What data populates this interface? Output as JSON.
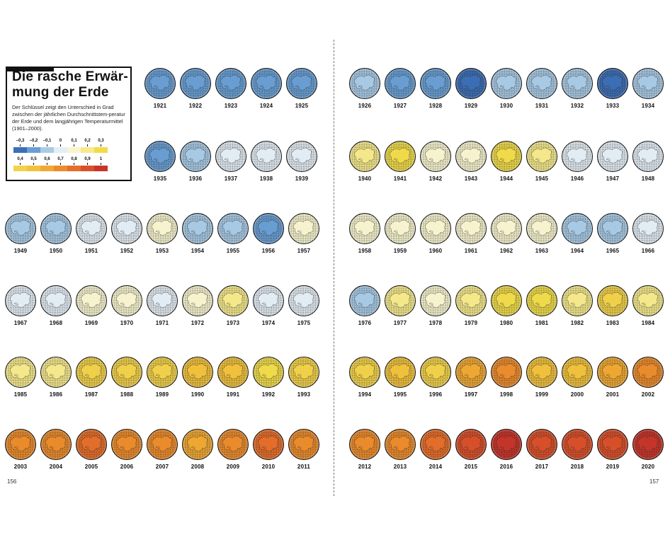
{
  "legend": {
    "title": "Die rasche Erwär-mung der Erde",
    "title_line1": "Die rasche Erwär-",
    "title_line2": "mung der Erde",
    "description": "Der Schlüssel zeigt den Unterschied in Grad zwischen der jährlichen Durchschnittstem-peratur der Erde und dem langjährigen Temperaturmittel (1901–2000).",
    "scale_row1": [
      {
        "label": "–0,3",
        "color": "#3d6fb6"
      },
      {
        "label": "–0,2",
        "color": "#6a9fd4"
      },
      {
        "label": "–0,1",
        "color": "#a9cbe6"
      },
      {
        "label": "0",
        "color": "#e4eef5"
      },
      {
        "label": "0,1",
        "color": "#f8f5d0"
      },
      {
        "label": "0,2",
        "color": "#f6ea8c"
      },
      {
        "label": "0,3",
        "color": "#f1dc4a"
      }
    ],
    "scale_row2": [
      {
        "label": "0,4",
        "color": "#f2d24a"
      },
      {
        "label": "0,5",
        "color": "#f2c23c"
      },
      {
        "label": "0,6",
        "color": "#f0a932"
      },
      {
        "label": "0,7",
        "color": "#ec8c2c"
      },
      {
        "label": "0,8",
        "color": "#e56e2a"
      },
      {
        "label": "0,9",
        "color": "#d9502a"
      },
      {
        "label": "1",
        "color": "#c7352a"
      }
    ]
  },
  "page_numbers": {
    "left": "156",
    "right": "157"
  },
  "years": [
    {
      "year": "1921",
      "anomaly": -0.2
    },
    {
      "year": "1922",
      "anomaly": -0.2
    },
    {
      "year": "1923",
      "anomaly": -0.2
    },
    {
      "year": "1924",
      "anomaly": -0.2
    },
    {
      "year": "1925",
      "anomaly": -0.2
    },
    {
      "year": "1926",
      "anomaly": -0.1
    },
    {
      "year": "1927",
      "anomaly": -0.2
    },
    {
      "year": "1928",
      "anomaly": -0.2
    },
    {
      "year": "1929",
      "anomaly": -0.3
    },
    {
      "year": "1930",
      "anomaly": -0.1
    },
    {
      "year": "1931",
      "anomaly": -0.1
    },
    {
      "year": "1932",
      "anomaly": -0.1
    },
    {
      "year": "1933",
      "anomaly": -0.3
    },
    {
      "year": "1934",
      "anomaly": -0.1
    },
    {
      "year": "1935",
      "anomaly": -0.2
    },
    {
      "year": "1936",
      "anomaly": -0.1
    },
    {
      "year": "1937",
      "anomaly": 0
    },
    {
      "year": "1938",
      "anomaly": 0
    },
    {
      "year": "1939",
      "anomaly": 0
    },
    {
      "year": "1940",
      "anomaly": 0.2
    },
    {
      "year": "1941",
      "anomaly": 0.3
    },
    {
      "year": "1942",
      "anomaly": 0.1
    },
    {
      "year": "1943",
      "anomaly": 0.1
    },
    {
      "year": "1944",
      "anomaly": 0.3
    },
    {
      "year": "1945",
      "anomaly": 0.2
    },
    {
      "year": "1946",
      "anomaly": 0
    },
    {
      "year": "1947",
      "anomaly": 0
    },
    {
      "year": "1948",
      "anomaly": 0
    },
    {
      "year": "1949",
      "anomaly": -0.1
    },
    {
      "year": "1950",
      "anomaly": -0.1
    },
    {
      "year": "1951",
      "anomaly": 0
    },
    {
      "year": "1952",
      "anomaly": 0
    },
    {
      "year": "1953",
      "anomaly": 0.1
    },
    {
      "year": "1954",
      "anomaly": -0.1
    },
    {
      "year": "1955",
      "anomaly": -0.1
    },
    {
      "year": "1956",
      "anomaly": -0.2
    },
    {
      "year": "1957",
      "anomaly": 0.1
    },
    {
      "year": "1958",
      "anomaly": 0.1
    },
    {
      "year": "1959",
      "anomaly": 0.1
    },
    {
      "year": "1960",
      "anomaly": 0.1
    },
    {
      "year": "1961",
      "anomaly": 0.1
    },
    {
      "year": "1962",
      "anomaly": 0.1
    },
    {
      "year": "1963",
      "anomaly": 0.1
    },
    {
      "year": "1964",
      "anomaly": -0.1
    },
    {
      "year": "1965",
      "anomaly": -0.1
    },
    {
      "year": "1966",
      "anomaly": 0
    },
    {
      "year": "1967",
      "anomaly": 0
    },
    {
      "year": "1968",
      "anomaly": 0
    },
    {
      "year": "1969",
      "anomaly": 0.1
    },
    {
      "year": "1970",
      "anomaly": 0.1
    },
    {
      "year": "1971",
      "anomaly": 0
    },
    {
      "year": "1972",
      "anomaly": 0.1
    },
    {
      "year": "1973",
      "anomaly": 0.2
    },
    {
      "year": "1974",
      "anomaly": 0
    },
    {
      "year": "1975",
      "anomaly": 0
    },
    {
      "year": "1976",
      "anomaly": -0.1
    },
    {
      "year": "1977",
      "anomaly": 0.2
    },
    {
      "year": "1978",
      "anomaly": 0.1
    },
    {
      "year": "1979",
      "anomaly": 0.2
    },
    {
      "year": "1980",
      "anomaly": 0.3
    },
    {
      "year": "1981",
      "anomaly": 0.3
    },
    {
      "year": "1982",
      "anomaly": 0.2
    },
    {
      "year": "1983",
      "anomaly": 0.4
    },
    {
      "year": "1984",
      "anomaly": 0.2
    },
    {
      "year": "1985",
      "anomaly": 0.2
    },
    {
      "year": "1986",
      "anomaly": 0.2
    },
    {
      "year": "1987",
      "anomaly": 0.4
    },
    {
      "year": "1988",
      "anomaly": 0.4
    },
    {
      "year": "1989",
      "anomaly": 0.4
    },
    {
      "year": "1990",
      "anomaly": 0.5
    },
    {
      "year": "1991",
      "anomaly": 0.5
    },
    {
      "year": "1992",
      "anomaly": 0.3
    },
    {
      "year": "1993",
      "anomaly": 0.4
    },
    {
      "year": "1994",
      "anomaly": 0.4
    },
    {
      "year": "1995",
      "anomaly": 0.5
    },
    {
      "year": "1996",
      "anomaly": 0.4
    },
    {
      "year": "1997",
      "anomaly": 0.6
    },
    {
      "year": "1998",
      "anomaly": 0.7
    },
    {
      "year": "1999",
      "anomaly": 0.5
    },
    {
      "year": "2000",
      "anomaly": 0.5
    },
    {
      "year": "2001",
      "anomaly": 0.6
    },
    {
      "year": "2002",
      "anomaly": 0.7
    },
    {
      "year": "2003",
      "anomaly": 0.7
    },
    {
      "year": "2004",
      "anomaly": 0.7
    },
    {
      "year": "2005",
      "anomaly": 0.8
    },
    {
      "year": "2006",
      "anomaly": 0.7
    },
    {
      "year": "2007",
      "anomaly": 0.7
    },
    {
      "year": "2008",
      "anomaly": 0.6
    },
    {
      "year": "2009",
      "anomaly": 0.7
    },
    {
      "year": "2010",
      "anomaly": 0.8
    },
    {
      "year": "2011",
      "anomaly": 0.7
    },
    {
      "year": "2012",
      "anomaly": 0.7
    },
    {
      "year": "2013",
      "anomaly": 0.7
    },
    {
      "year": "2014",
      "anomaly": 0.8
    },
    {
      "year": "2015",
      "anomaly": 0.9
    },
    {
      "year": "2016",
      "anomaly": 1
    },
    {
      "year": "2017",
      "anomaly": 0.9
    },
    {
      "year": "2018",
      "anomaly": 0.9
    },
    {
      "year": "2019",
      "anomaly": 0.9
    },
    {
      "year": "2020",
      "anomaly": 1
    }
  ]
}
